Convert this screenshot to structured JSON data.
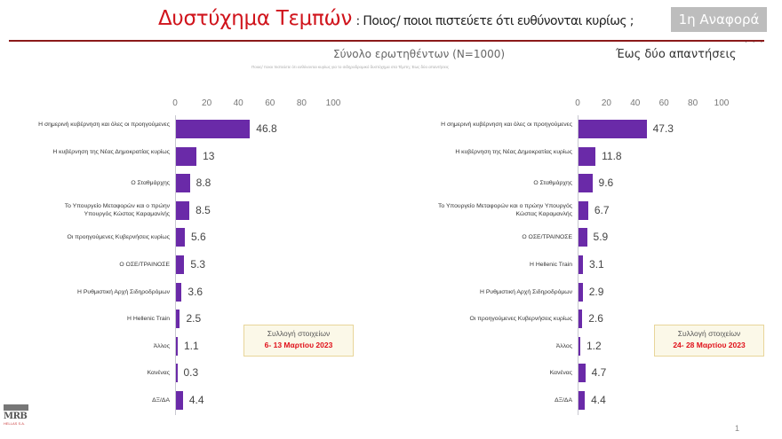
{
  "header": {
    "title": "Δυστύχημα Τεμπών",
    "question": ": Ποιος/ ποιοι πιστεύετε ότι ευθύνονται κυρίως ;",
    "badge": "1η Αναφορά",
    "dots": "...",
    "sample": "Σύνολο ερωτηθέντων (N=1000)",
    "sub_question": "Ποιος/ ποιοι πιστεύετε ότι ευθύνονται κυρίως για το σιδηροδρομικό δυστύχημα στα Τέμπη; Έως δύο απαντήσεις",
    "max_answers": "Έως δύο απαντήσεις"
  },
  "chart_data": [
    {
      "type": "bar",
      "orientation": "horizontal",
      "title": "Συλλογή στοιχείων 6- 13 Μαρτίου 2023",
      "ticks": [
        "0",
        "20",
        "40",
        "60",
        "80",
        "100"
      ],
      "xlim": [
        0,
        100
      ],
      "categories": [
        "Η σημερινή κυβέρνηση και όλες οι προηγούμενες",
        "Η κυβέρνηση της Νέας Δημοκρατίας κυρίως",
        "Ο Σταθμάρχης",
        "Το Υπουργείο Μεταφορών και ο πρώην Υπουργός Κώστας Καραμανλής",
        "Οι προηγούμενες Κυβερνήσεις κυρίως",
        "Ο ΟΣΕ/ΤΡΑΙΝΟΣΕ",
        "Η Ρυθμιστική Αρχή Σιδηροδρόμων",
        "Η Hellenic Train",
        "Άλλος",
        "Κανένας",
        "ΔΞ/ΔΑ"
      ],
      "values": [
        46.8,
        13,
        8.8,
        8.5,
        5.6,
        5.3,
        3.6,
        2.5,
        1.1,
        0.3,
        4.4
      ],
      "value_labels": [
        "46.8",
        "13",
        "8.8",
        "8.5",
        "5.6",
        "5.3",
        "3.6",
        "2.5",
        "1.1",
        "0.3",
        "4.4"
      ],
      "bar_color": "#6a2aa8"
    },
    {
      "type": "bar",
      "orientation": "horizontal",
      "title": "Συλλογή στοιχείων 24- 28 Μαρτίου 2023",
      "ticks": [
        "0",
        "20",
        "40",
        "60",
        "80",
        "100"
      ],
      "xlim": [
        0,
        100
      ],
      "categories": [
        "Η σημερινή κυβέρνηση και όλες οι προηγούμενες",
        "Η κυβέρνηση της Νέας Δημοκρατίας κυρίως",
        "Ο Σταθμάρχης",
        "Το Υπουργείο Μεταφορών και ο πρώην Υπουργός Κώστας Καραμανλής",
        "Ο ΟΣΕ/ΤΡΑΙΝΟΣΕ",
        "Η Hellenic Train",
        "Η Ρυθμιστική Αρχή Σιδηροδρόμων",
        "Οι προηγούμενες Κυβερνήσεις κυρίως",
        "Άλλος",
        "Κανένας",
        "ΔΞ/ΔΑ"
      ],
      "values": [
        47.3,
        11.8,
        9.6,
        6.7,
        5.9,
        3.1,
        2.9,
        2.6,
        1.2,
        4.7,
        4.4
      ],
      "value_labels": [
        "47.3",
        "11.8",
        "9.6",
        "6.7",
        "5.9",
        "3.1",
        "2.9",
        "2.6",
        "1.2",
        "4.7",
        "4.4"
      ],
      "bar_color": "#6a2aa8"
    }
  ],
  "notes": [
    {
      "title": "Συλλογή στοιχείων",
      "dates": "6- 13 Μαρτίου 2023"
    },
    {
      "title": "Συλλογή στοιχείων",
      "dates": "24- 28 Μαρτίου 2023"
    }
  ],
  "logo": {
    "name": "MRB",
    "sub": "HELLAS S.A."
  },
  "page_number": "1"
}
